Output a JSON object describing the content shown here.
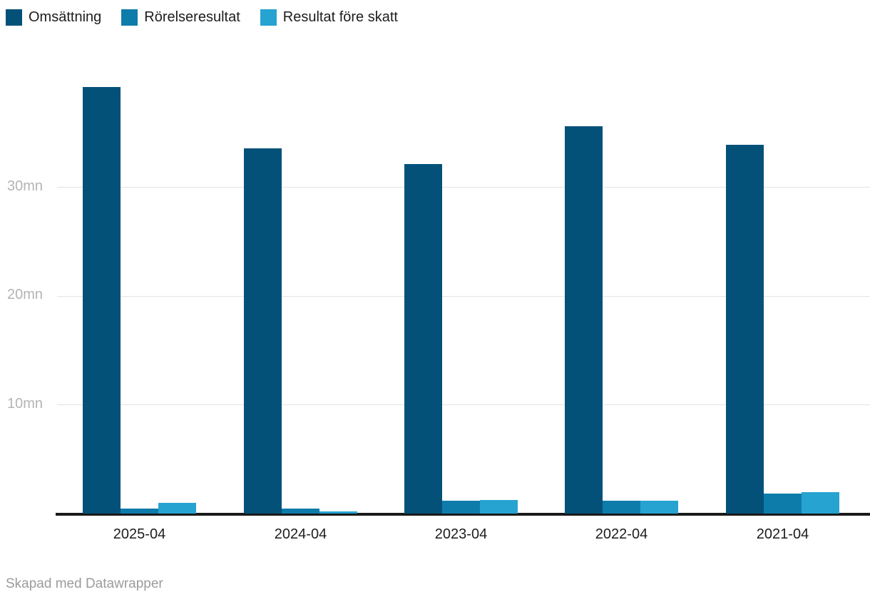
{
  "footer": {
    "text": "Skapad med Datawrapper"
  },
  "chart_data": {
    "type": "bar",
    "title": "",
    "xlabel": "",
    "ylabel": "",
    "unit": "mn",
    "categories": [
      "2025-04",
      "2024-04",
      "2023-04",
      "2022-04",
      "2021-04"
    ],
    "series": [
      {
        "name": "Omsättning",
        "color": "#035179",
        "values": [
          39.2,
          33.6,
          32.1,
          35.6,
          33.9
        ]
      },
      {
        "name": "Rörelseresultat",
        "color": "#0e7cab",
        "values": [
          0.45,
          0.45,
          1.2,
          1.15,
          1.85
        ]
      },
      {
        "name": "Resultat före skatt",
        "color": "#26a3d0",
        "values": [
          1.0,
          0.2,
          1.25,
          1.2,
          2.0
        ]
      }
    ],
    "y_ticks": [
      {
        "value": 10,
        "label": "10mn"
      },
      {
        "value": 20,
        "label": "20mn"
      },
      {
        "value": 30,
        "label": "30mn"
      }
    ],
    "ylim": [
      0,
      42
    ],
    "grid": "horizontal",
    "legend_position": "top-left",
    "colors": {
      "axis": "#1a1a1a",
      "gridline": "#e3e3e3",
      "y_tick_text": "#b4b4b4",
      "x_tick_text": "#1d1d1d",
      "legend_text": "#1d1d1d",
      "footer_text": "#9b9b9b"
    }
  }
}
